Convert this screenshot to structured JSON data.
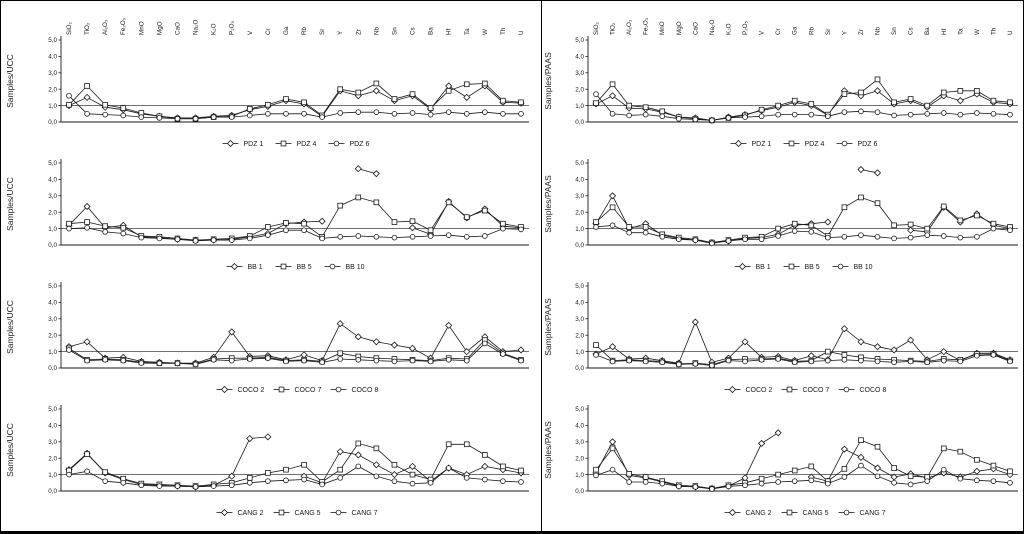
{
  "figure": {
    "background": "#ffffff",
    "ink_color": "#1a1a1a",
    "border_color": "#000000",
    "grid": "2 columns x 4 rows",
    "legend_position": "bottom"
  },
  "categories": [
    "SiO₂",
    "TiO₂",
    "Al₂O₃",
    "Fe₂O₃",
    "MnO",
    "MgO",
    "CaO",
    "Na₂O",
    "K₂O",
    "P₂O₅",
    "V",
    "Cr",
    "Ga",
    "Rb",
    "Sr",
    "Y",
    "Zr",
    "Nb",
    "Sn",
    "Cs",
    "Ba",
    "Hf",
    "Ta",
    "W",
    "Th",
    "U"
  ],
  "y_axis": {
    "ticks": [
      "0,0",
      "1,0",
      "2,0",
      "3,0",
      "4,0",
      "5,0"
    ],
    "min": 0,
    "max": 5,
    "reference_line": 1.0
  },
  "chart_data": [
    {
      "type": "line",
      "ylabel": "Samples/UCC",
      "position": "row1-left",
      "ylim": [
        0,
        5
      ],
      "series": [
        {
          "name": "PDZ 1",
          "marker": "diamond",
          "values": [
            1.0,
            1.5,
            0.9,
            0.75,
            0.5,
            0.35,
            0.25,
            0.25,
            0.35,
            0.4,
            0.75,
            0.95,
            1.3,
            1.1,
            0.35,
            1.9,
            1.6,
            1.9,
            1.3,
            1.6,
            0.8,
            2.2,
            1.5,
            2.2,
            1.2,
            1.15
          ]
        },
        {
          "name": "PDZ 4",
          "marker": "square",
          "values": [
            1.05,
            2.2,
            1.05,
            0.85,
            0.55,
            0.35,
            0.2,
            0.2,
            0.3,
            0.35,
            0.8,
            1.05,
            1.4,
            1.2,
            0.4,
            2.0,
            1.8,
            2.35,
            1.4,
            1.7,
            0.85,
            1.9,
            2.3,
            2.35,
            1.3,
            1.2
          ]
        },
        {
          "name": "PDZ 6",
          "marker": "circle",
          "values": [
            1.6,
            0.5,
            0.45,
            0.4,
            0.3,
            0.25,
            0.2,
            0.2,
            0.3,
            0.3,
            0.4,
            0.5,
            0.5,
            0.5,
            0.3,
            0.55,
            0.6,
            0.6,
            0.5,
            0.55,
            0.45,
            0.6,
            0.5,
            0.6,
            0.5,
            0.5
          ]
        }
      ]
    },
    {
      "type": "line",
      "ylabel": "Samples/UCC",
      "position": "row2-left",
      "ylim": [
        0,
        5
      ],
      "series": [
        {
          "name": "BB 1",
          "marker": "diamond",
          "values": [
            1.2,
            2.35,
            1.05,
            1.2,
            0.5,
            0.45,
            0.35,
            0.3,
            0.3,
            0.35,
            0.5,
            0.7,
            1.3,
            1.4,
            1.45,
            null,
            4.65,
            4.35,
            null,
            1.05,
            0.65,
            2.65,
            1.65,
            2.2,
            1.15,
            1.05
          ]
        },
        {
          "name": "BB 5",
          "marker": "square",
          "values": [
            1.3,
            1.4,
            1.15,
            1.05,
            0.55,
            0.5,
            0.4,
            0.3,
            0.35,
            0.4,
            0.55,
            1.1,
            1.35,
            1.3,
            0.5,
            2.4,
            2.9,
            2.6,
            1.4,
            1.45,
            0.9,
            2.6,
            1.7,
            2.1,
            1.3,
            1.1
          ]
        },
        {
          "name": "BB 10",
          "marker": "circle",
          "values": [
            1.0,
            1.05,
            0.8,
            0.7,
            0.45,
            0.4,
            0.35,
            0.25,
            0.3,
            0.3,
            0.4,
            0.6,
            0.9,
            0.9,
            0.4,
            0.5,
            0.55,
            0.5,
            0.45,
            0.5,
            0.55,
            0.6,
            0.5,
            0.55,
            1.0,
            0.95
          ]
        }
      ]
    },
    {
      "type": "line",
      "ylabel": "Samples/UCC",
      "position": "row3-left",
      "ylim": [
        0,
        5
      ],
      "series": [
        {
          "name": "COCO 2",
          "marker": "diamond",
          "values": [
            1.3,
            1.6,
            0.6,
            0.65,
            0.4,
            0.35,
            0.3,
            0.3,
            0.65,
            2.2,
            0.7,
            0.75,
            0.5,
            0.8,
            0.45,
            2.7,
            1.9,
            1.6,
            1.4,
            1.2,
            0.6,
            2.6,
            1.0,
            1.9,
            1.0,
            1.1
          ]
        },
        {
          "name": "COCO 7",
          "marker": "square",
          "values": [
            1.2,
            0.5,
            0.55,
            0.5,
            0.35,
            0.3,
            0.3,
            0.25,
            0.55,
            0.6,
            0.6,
            0.65,
            0.45,
            0.5,
            0.4,
            0.9,
            0.7,
            0.6,
            0.55,
            0.5,
            0.45,
            0.6,
            0.55,
            1.7,
            0.9,
            0.5
          ]
        },
        {
          "name": "COCO 8",
          "marker": "circle",
          "values": [
            1.1,
            0.45,
            0.5,
            0.45,
            0.3,
            0.28,
            0.28,
            0.22,
            0.5,
            0.45,
            0.55,
            0.6,
            0.4,
            0.45,
            0.35,
            0.55,
            0.5,
            0.45,
            0.4,
            0.45,
            0.4,
            0.5,
            0.45,
            1.5,
            0.85,
            0.45
          ]
        }
      ]
    },
    {
      "type": "line",
      "ylabel": "Samples/UCC",
      "position": "row4-left",
      "ylim": [
        0,
        5
      ],
      "series": [
        {
          "name": "CANG 2",
          "marker": "diamond",
          "values": [
            1.3,
            2.3,
            1.1,
            0.7,
            0.4,
            0.35,
            0.3,
            0.25,
            0.35,
            0.9,
            3.2,
            3.3,
            null,
            0.9,
            0.5,
            2.4,
            2.2,
            1.6,
            1.0,
            1.5,
            0.6,
            1.4,
            1.0,
            1.5,
            1.3,
            1.1
          ]
        },
        {
          "name": "CANG 5",
          "marker": "square",
          "values": [
            1.25,
            2.25,
            1.15,
            0.75,
            0.45,
            0.4,
            0.35,
            0.3,
            0.4,
            0.5,
            0.8,
            1.1,
            1.3,
            1.6,
            0.55,
            1.3,
            2.9,
            2.6,
            1.6,
            1.0,
            0.7,
            2.85,
            2.85,
            2.2,
            1.5,
            1.25
          ]
        },
        {
          "name": "CANG 7",
          "marker": "circle",
          "values": [
            1.0,
            1.2,
            0.6,
            0.5,
            0.35,
            0.3,
            0.3,
            0.25,
            0.3,
            0.35,
            0.5,
            0.6,
            0.65,
            0.7,
            0.4,
            0.8,
            1.5,
            0.9,
            0.6,
            0.45,
            0.5,
            1.4,
            0.8,
            0.7,
            0.6,
            0.55
          ]
        }
      ]
    },
    {
      "type": "line",
      "ylabel": "Samples/PAAS",
      "position": "row1-right",
      "ylim": [
        0,
        5
      ],
      "series": [
        {
          "name": "PDZ 1",
          "marker": "diamond",
          "values": [
            1.1,
            1.6,
            0.85,
            0.8,
            0.6,
            0.3,
            0.25,
            0.1,
            0.3,
            0.45,
            0.7,
            0.9,
            1.2,
            1.0,
            0.4,
            1.9,
            1.6,
            1.9,
            1.1,
            1.3,
            0.9,
            1.6,
            1.3,
            1.7,
            1.2,
            1.1
          ]
        },
        {
          "name": "PDZ 4",
          "marker": "square",
          "values": [
            1.15,
            2.3,
            1.0,
            0.9,
            0.65,
            0.3,
            0.2,
            0.1,
            0.25,
            0.4,
            0.75,
            1.0,
            1.3,
            1.1,
            0.45,
            1.7,
            1.8,
            2.6,
            1.2,
            1.4,
            1.0,
            1.8,
            1.9,
            1.9,
            1.3,
            1.2
          ]
        },
        {
          "name": "PDZ 6",
          "marker": "circle",
          "values": [
            1.7,
            0.5,
            0.4,
            0.45,
            0.35,
            0.2,
            0.15,
            0.1,
            0.25,
            0.3,
            0.35,
            0.45,
            0.45,
            0.45,
            0.35,
            0.6,
            0.65,
            0.6,
            0.4,
            0.45,
            0.5,
            0.55,
            0.45,
            0.55,
            0.5,
            0.45
          ]
        }
      ]
    },
    {
      "type": "line",
      "ylabel": "Samples/PAAS",
      "position": "row2-right",
      "ylim": [
        0,
        5
      ],
      "series": [
        {
          "name": "BB 1",
          "marker": "diamond",
          "values": [
            1.3,
            3.0,
            1.0,
            1.3,
            0.6,
            0.4,
            0.3,
            0.15,
            0.25,
            0.4,
            0.45,
            0.65,
            1.2,
            1.3,
            1.4,
            null,
            4.6,
            4.4,
            null,
            0.9,
            0.8,
            2.3,
            1.4,
            1.9,
            1.2,
            1.0
          ]
        },
        {
          "name": "BB 5",
          "marker": "square",
          "values": [
            1.4,
            2.3,
            1.1,
            1.1,
            0.65,
            0.45,
            0.35,
            0.15,
            0.3,
            0.45,
            0.5,
            1.0,
            1.3,
            1.2,
            0.55,
            2.3,
            2.9,
            2.55,
            1.2,
            1.25,
            1.0,
            2.35,
            1.5,
            1.8,
            1.3,
            1.1
          ]
        },
        {
          "name": "BB 10",
          "marker": "circle",
          "values": [
            1.1,
            1.2,
            0.75,
            0.75,
            0.5,
            0.35,
            0.3,
            0.1,
            0.25,
            0.35,
            0.35,
            0.55,
            0.85,
            0.8,
            0.45,
            0.5,
            0.6,
            0.5,
            0.4,
            0.45,
            0.6,
            0.55,
            0.45,
            0.5,
            1.0,
            0.9
          ]
        }
      ]
    },
    {
      "type": "line",
      "ylabel": "Samples/PAAS",
      "position": "row3-right",
      "ylim": [
        0,
        5
      ],
      "series": [
        {
          "name": "COCO 2",
          "marker": "diamond",
          "values": [
            0.85,
            1.3,
            0.55,
            0.6,
            0.45,
            0.3,
            2.8,
            0.35,
            0.6,
            1.6,
            0.65,
            0.7,
            0.45,
            0.75,
            0.5,
            2.4,
            1.6,
            1.3,
            1.1,
            1.7,
            0.5,
            1.0,
            0.45,
            0.9,
            0.9,
            0.5
          ]
        },
        {
          "name": "COCO 7",
          "marker": "square",
          "values": [
            1.4,
            0.45,
            0.5,
            0.45,
            0.4,
            0.25,
            0.3,
            0.2,
            0.5,
            0.55,
            0.55,
            0.6,
            0.4,
            0.45,
            1.0,
            0.8,
            0.65,
            0.55,
            0.5,
            0.45,
            0.4,
            0.55,
            0.5,
            0.85,
            0.85,
            0.45
          ]
        },
        {
          "name": "COCO 8",
          "marker": "circle",
          "values": [
            0.8,
            0.4,
            0.45,
            0.4,
            0.35,
            0.22,
            0.25,
            0.15,
            0.45,
            0.4,
            0.5,
            0.55,
            0.35,
            0.4,
            0.45,
            0.5,
            0.45,
            0.4,
            0.35,
            0.4,
            0.35,
            0.45,
            0.4,
            0.75,
            0.8,
            0.4
          ]
        }
      ]
    },
    {
      "type": "line",
      "ylabel": "Samples/PAAS",
      "position": "row4-right",
      "ylim": [
        0,
        5
      ],
      "series": [
        {
          "name": "CANG 2",
          "marker": "diamond",
          "values": [
            1.1,
            3.0,
            0.95,
            0.8,
            0.55,
            0.3,
            0.25,
            0.15,
            0.3,
            0.8,
            2.9,
            3.55,
            null,
            0.85,
            0.6,
            2.55,
            2.05,
            1.4,
            0.85,
            1.05,
            0.8,
            1.1,
            0.85,
            1.2,
            1.35,
            1.0
          ]
        },
        {
          "name": "CANG 5",
          "marker": "square",
          "values": [
            1.3,
            2.6,
            1.05,
            0.85,
            0.6,
            0.35,
            0.3,
            0.15,
            0.35,
            0.5,
            0.75,
            1.0,
            1.25,
            1.5,
            0.6,
            1.35,
            3.1,
            2.7,
            1.4,
            0.9,
            0.85,
            2.6,
            2.4,
            1.9,
            1.55,
            1.2
          ]
        },
        {
          "name": "CANG 7",
          "marker": "circle",
          "values": [
            0.95,
            1.3,
            0.55,
            0.55,
            0.45,
            0.28,
            0.25,
            0.12,
            0.28,
            0.35,
            0.45,
            0.55,
            0.6,
            0.65,
            0.45,
            0.85,
            1.55,
            0.9,
            0.5,
            0.4,
            0.6,
            1.3,
            0.75,
            0.65,
            0.6,
            0.5
          ]
        }
      ]
    }
  ]
}
